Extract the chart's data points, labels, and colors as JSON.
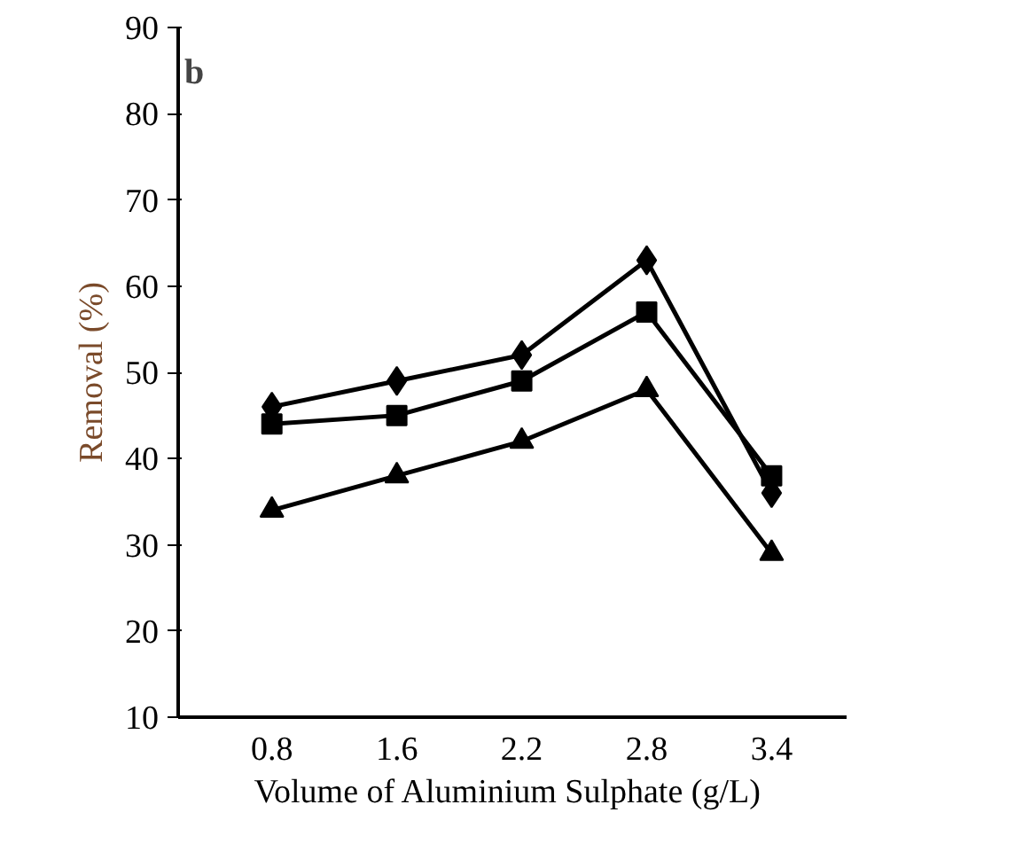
{
  "chart_data": {
    "type": "line",
    "xlabel": "Volume of Aluminium  Sulphate (g/L)",
    "ylabel": "Removal (%)",
    "categories": [
      "0.8",
      "1.6",
      "2.2",
      "2.8",
      "3.4"
    ],
    "series": [
      {
        "color": "#000000",
        "marker": "diamond",
        "values": [
          46,
          49,
          52,
          63,
          36
        ]
      },
      {
        "color": "#000000",
        "marker": "square",
        "values": [
          44,
          45,
          49,
          57,
          38
        ]
      },
      {
        "color": "#000000",
        "marker": "triangle",
        "values": [
          34,
          38,
          42,
          48,
          29
        ]
      }
    ],
    "ylim": [
      10,
      90
    ],
    "yticks": [
      10,
      20,
      30,
      40,
      50,
      60,
      70,
      80,
      90
    ],
    "annotations": [
      "b"
    ],
    "grid": false,
    "line_style": "solid"
  }
}
